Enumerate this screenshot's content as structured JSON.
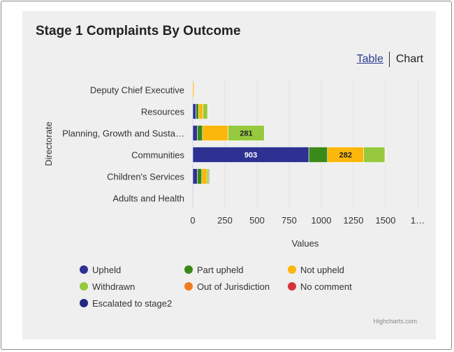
{
  "title": "Stage 1 Complaints By Outcome",
  "toggle": {
    "table_label": "Table",
    "chart_label": "Chart"
  },
  "credits": "Highcharts.com",
  "chart_data": {
    "type": "bar",
    "stacked": true,
    "orientation": "horizontal",
    "title": "Stage 1 Complaints By Outcome",
    "xlabel": "Directorate",
    "ylabel": "Values",
    "categories": [
      "Deputy Chief Executive",
      "Resources",
      "Planning, Growth and Susta…",
      "Communities",
      "Children's Services",
      "Adults and Health"
    ],
    "xlim": [
      0,
      1750
    ],
    "ticks": [
      "0",
      "250",
      "500",
      "750",
      "1000",
      "1250",
      "1500",
      "1…"
    ],
    "grid": true,
    "legend_position": "bottom",
    "series": [
      {
        "name": "Upheld",
        "color": "#2e3192",
        "values": [
          0,
          25,
          35,
          903,
          35,
          0
        ]
      },
      {
        "name": "Part upheld",
        "color": "#3a8a1a",
        "values": [
          0,
          20,
          40,
          145,
          35,
          0
        ]
      },
      {
        "name": "Not upheld",
        "color": "#fbb70a",
        "values": [
          10,
          35,
          200,
          282,
          40,
          0
        ]
      },
      {
        "name": "Withdrawn",
        "color": "#96c93d",
        "values": [
          0,
          35,
          281,
          165,
          15,
          0
        ]
      },
      {
        "name": "Out of Jurisdiction",
        "color": "#f07b1e",
        "values": [
          0,
          0,
          0,
          5,
          0,
          0
        ]
      },
      {
        "name": "No comment",
        "color": "#d7333f",
        "values": [
          0,
          0,
          0,
          3,
          0,
          0
        ]
      },
      {
        "name": "Escalated to stage2",
        "color": "#232884",
        "values": [
          0,
          0,
          0,
          0,
          5,
          0
        ]
      }
    ],
    "data_labels": [
      {
        "category": "Planning, Growth and Susta…",
        "series": "Withdrawn",
        "text": "281"
      },
      {
        "category": "Communities",
        "series": "Upheld",
        "text": "903"
      },
      {
        "category": "Communities",
        "series": "Not upheld",
        "text": "282"
      }
    ]
  }
}
